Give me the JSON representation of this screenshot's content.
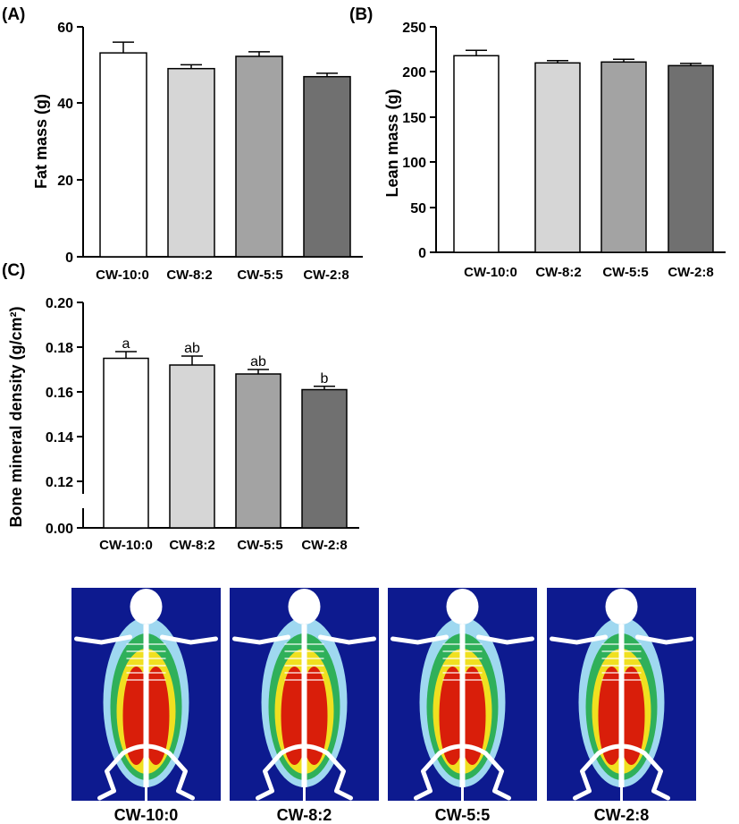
{
  "chart_data": [
    {
      "panel": "(A)",
      "type": "bar",
      "categories": [
        "CW-10:0",
        "CW-8:2",
        "CW-5:5",
        "CW-2:8"
      ],
      "values": [
        53.2,
        49.1,
        52.3,
        47.0
      ],
      "errors": [
        2.8,
        1.0,
        1.2,
        0.9
      ],
      "ylabel": "Fat mass (g)",
      "ylim": [
        0,
        60
      ],
      "yticks": [
        "0",
        "20",
        "40",
        "60"
      ],
      "significance": []
    },
    {
      "panel": "(B)",
      "type": "bar",
      "categories": [
        "CW-10:0",
        "CW-8:2",
        "CW-5:5",
        "CW-2:8"
      ],
      "values": [
        218,
        210,
        211,
        207
      ],
      "errors": [
        6,
        2.5,
        3,
        2.5
      ],
      "ylabel": "Lean mass (g)",
      "ylim": [
        0,
        250
      ],
      "yticks": [
        "0",
        "50",
        "100",
        "150",
        "200",
        "250"
      ],
      "significance": []
    },
    {
      "panel": "(C)",
      "type": "bar",
      "categories": [
        "CW-10:0",
        "CW-8:2",
        "CW-5:5",
        "CW-2:8"
      ],
      "values": [
        0.175,
        0.172,
        0.168,
        0.161
      ],
      "errors": [
        0.003,
        0.004,
        0.002,
        0.0015
      ],
      "ylabel": "Bone mineral density (g/cm²)",
      "ylim": [
        0.12,
        0.2
      ],
      "axis_break": true,
      "yticks": [
        "0.00",
        "0.12",
        "0.14",
        "0.16",
        "0.18",
        "0.20"
      ],
      "significance": [
        "a",
        "ab",
        "ab",
        "b"
      ]
    }
  ],
  "scans": {
    "labels": [
      "CW-10:0",
      "CW-8:2",
      "CW-5:5",
      "CW-2:8"
    ],
    "background_color": "#0d1a8f",
    "body_colors": [
      "#d91e0a",
      "#f0e020",
      "#2fb05a",
      "#9fd8f0"
    ]
  },
  "colors": {
    "bars": [
      "#ffffff",
      "#d6d6d6",
      "#a3a3a3",
      "#707070"
    ],
    "stroke": "#000000"
  }
}
